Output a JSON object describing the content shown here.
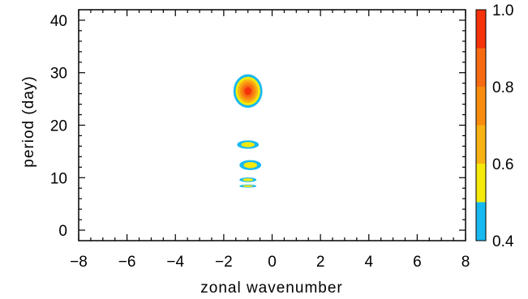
{
  "chart_data": {
    "type": "contour",
    "xlabel": "zonal wavenumber",
    "ylabel": "period (day)",
    "xlim": [
      -8,
      8
    ],
    "ylim": [
      -2,
      42
    ],
    "xticks": [
      "−8",
      "−6",
      "−4",
      "−2",
      "0",
      "2",
      "4",
      "6",
      "8"
    ],
    "xtick_values": [
      -8,
      -6,
      -4,
      -2,
      0,
      2,
      4,
      6,
      8
    ],
    "yticks": [
      "0",
      "10",
      "20",
      "30",
      "40"
    ],
    "ytick_values": [
      0,
      10,
      20,
      30,
      40
    ],
    "levels": [
      0.4,
      0.5,
      0.6,
      0.7,
      0.8,
      0.9,
      1.0
    ],
    "level_colors": [
      "#18b9f0",
      "#f5ea0a",
      "#f9b214",
      "#f98c0e",
      "#f76a12",
      "#f5320a"
    ],
    "colorbar_ticks": [
      "0.4",
      "0.6",
      "0.8",
      "1.0"
    ],
    "colorbar_tick_values": [
      0.4,
      0.6,
      0.8,
      1.0
    ],
    "peaks": [
      {
        "x": -1.0,
        "y": 26.5,
        "rx": 0.6,
        "ry": 3.2,
        "max_level": 1.0
      },
      {
        "x": -1.0,
        "y": 16.3,
        "rx": 0.45,
        "ry": 0.8,
        "max_level": 0.5
      },
      {
        "x": -0.9,
        "y": 12.4,
        "rx": 0.45,
        "ry": 0.95,
        "max_level": 0.5
      },
      {
        "x": -1.0,
        "y": 9.6,
        "rx": 0.35,
        "ry": 0.45,
        "max_level": 0.5
      },
      {
        "x": -1.0,
        "y": 8.4,
        "rx": 0.35,
        "ry": 0.3,
        "max_level": 0.5
      }
    ]
  }
}
